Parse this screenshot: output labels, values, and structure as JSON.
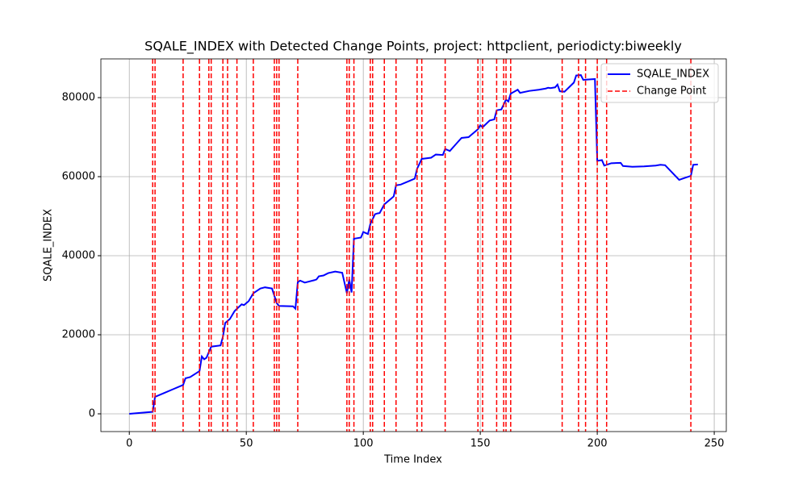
{
  "chart_data": {
    "type": "line",
    "title": "SQALE_INDEX with Detected Change Points, project: httpclient, periodicty:biweekly",
    "x_label": "Time Index",
    "y_label": "SQALE_INDEX",
    "xlim": [
      -12.15,
      255.15
    ],
    "ylim": [
      -4490,
      89800
    ],
    "xticks": [
      0,
      50,
      100,
      150,
      200,
      250
    ],
    "yticks": [
      0,
      20000,
      40000,
      60000,
      80000
    ],
    "grid": true,
    "legend": "upper right",
    "series": [
      {
        "name": "SQALE_INDEX",
        "color": "#0000ff",
        "x": [
          0,
          10,
          11,
          15,
          19,
          23,
          24,
          26,
          30,
          31,
          32,
          33,
          35,
          39,
          40,
          41,
          43,
          45,
          48,
          49,
          51,
          53,
          56,
          58,
          61,
          63,
          64,
          70,
          71,
          72,
          73,
          75,
          79,
          80,
          81,
          83,
          85,
          88,
          91,
          93,
          94,
          95,
          96,
          99,
          100,
          102,
          103,
          105,
          106,
          107,
          109,
          112,
          113,
          114,
          116,
          120,
          122,
          123,
          125,
          129,
          131,
          134,
          135,
          137,
          140,
          142,
          145,
          147,
          149,
          150,
          151,
          154,
          156,
          157,
          159,
          161,
          162,
          163,
          166,
          167,
          171,
          175,
          178,
          179,
          180,
          182,
          183,
          184,
          186,
          190,
          191,
          193,
          194,
          199,
          200,
          202,
          203,
          206,
          210,
          211,
          215,
          220,
          225,
          227,
          229,
          235,
          237,
          240,
          241,
          243
        ],
        "values": [
          0,
          500,
          4300,
          5300,
          6300,
          7300,
          9000,
          9300,
          10800,
          14500,
          13800,
          14200,
          17000,
          17300,
          19500,
          23000,
          24000,
          26000,
          27700,
          27500,
          28500,
          30500,
          31700,
          32000,
          31700,
          28000,
          27300,
          27200,
          26600,
          33300,
          33700,
          33200,
          33800,
          34000,
          34800,
          35000,
          35600,
          36000,
          35700,
          30500,
          34000,
          30700,
          44300,
          44600,
          46000,
          45500,
          48000,
          50500,
          50700,
          50800,
          53000,
          54500,
          55000,
          57800,
          58000,
          59000,
          59500,
          62000,
          64500,
          64800,
          65600,
          65500,
          67000,
          66500,
          68500,
          69800,
          70000,
          71000,
          72000,
          73000,
          72500,
          74200,
          74500,
          76800,
          77000,
          79500,
          79000,
          81000,
          82000,
          81200,
          81700,
          82000,
          82300,
          82500,
          82400,
          82600,
          83300,
          81600,
          81500,
          83800,
          85600,
          85700,
          84500,
          84700,
          64000,
          64200,
          62800,
          63400,
          63500,
          62700,
          62500,
          62600,
          62800,
          63000,
          62900,
          59200,
          59600,
          60200,
          63000,
          63100
        ]
      }
    ],
    "change_points": {
      "name": "Change Point",
      "color": "#ff0000",
      "x": [
        10,
        11,
        23,
        30,
        34,
        35,
        40,
        42,
        46,
        53,
        62,
        63,
        64,
        72,
        93,
        94,
        96,
        103,
        104,
        109,
        114,
        123,
        125,
        135,
        149,
        151,
        157,
        160,
        161,
        163,
        185,
        192,
        195,
        200,
        204,
        240
      ]
    }
  }
}
